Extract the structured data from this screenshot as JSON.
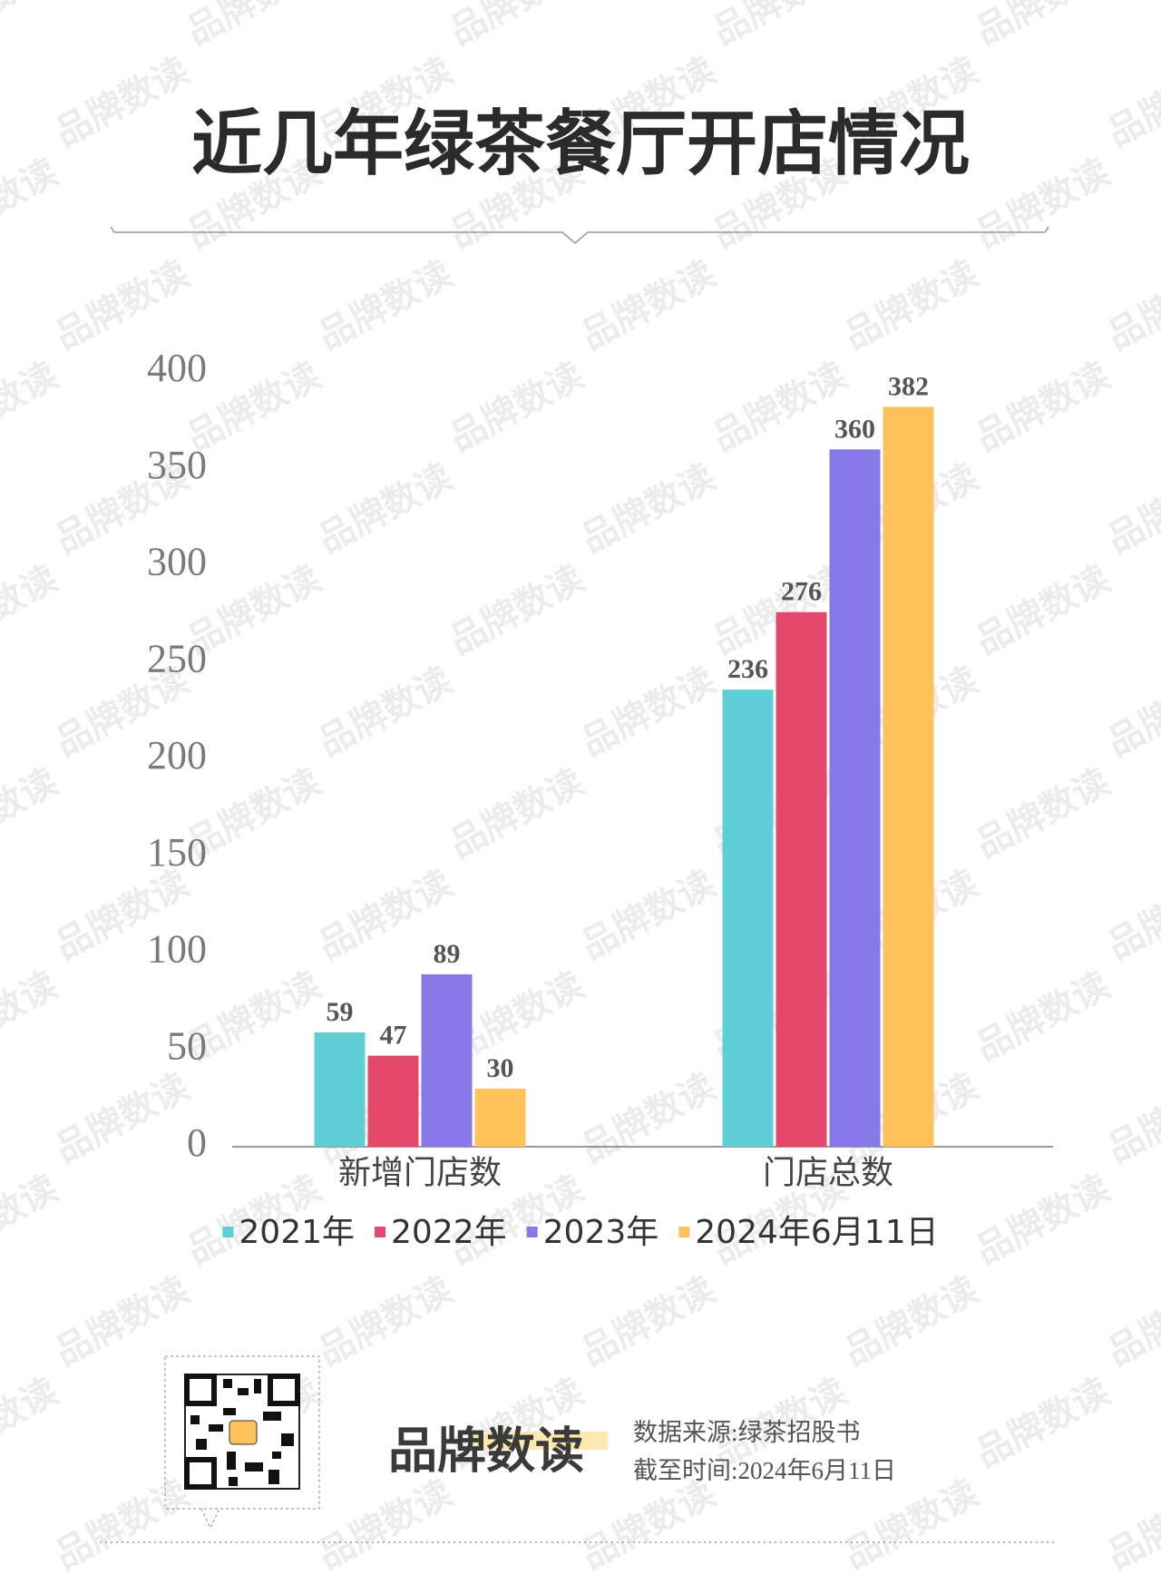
{
  "chart_data": {
    "type": "bar",
    "title": "近几年绿茶餐厅开店情况",
    "categories": [
      "新增门店数",
      "门店总数"
    ],
    "series": [
      {
        "name": "2021年",
        "color": "#5ecfd6",
        "values": [
          59,
          236
        ]
      },
      {
        "name": "2022年",
        "color": "#e4486a",
        "values": [
          47,
          276
        ]
      },
      {
        "name": "2023年",
        "color": "#8678e6",
        "values": [
          89,
          360
        ]
      },
      {
        "name": "2024年6月11日",
        "color": "#fdc35a",
        "values": [
          30,
          382
        ]
      }
    ],
    "ylim": [
      0,
      400
    ],
    "yticks": [
      0,
      50,
      100,
      150,
      200,
      250,
      300,
      350,
      400
    ],
    "grid": false,
    "legend": "bottom"
  },
  "watermark": "品牌数读",
  "footer": {
    "brand": "品牌数读",
    "source": "数据来源:绿茶招股书",
    "date": "截至时间:2024年6月11日"
  }
}
